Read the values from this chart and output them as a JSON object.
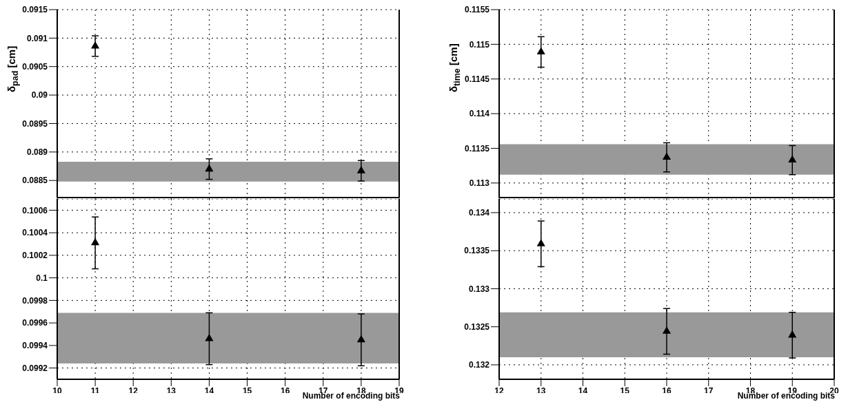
{
  "chart_data": [
    {
      "type": "scatter",
      "ylabel": "δ$_{pad}$ [cm]",
      "x": [
        11,
        14,
        18
      ],
      "values": [
        0.09086,
        0.0887,
        0.08867
      ],
      "errors": [
        0.00018,
        0.00018,
        0.00018
      ],
      "color": "#000000",
      "marker": "triangle",
      "xlim": [
        10,
        19
      ],
      "xticks": [
        10,
        11,
        12,
        13,
        14,
        15,
        16,
        17,
        18,
        19
      ],
      "ylim": [
        0.0882,
        0.0915
      ],
      "yticks": [
        0.0885,
        0.089,
        0.0895,
        0.09,
        0.0905,
        0.091,
        0.0915
      ],
      "grid": true,
      "tick_labels": "y",
      "bands": [
        {
          "axis": "y",
          "from": 0.08848,
          "to": 0.08883,
          "color": "#999999"
        }
      ]
    },
    {
      "type": "scatter",
      "ylabel": "δ$_{time}$ [cm]",
      "x": [
        13,
        16,
        19
      ],
      "values": [
        0.11489,
        0.11337,
        0.11333
      ],
      "errors": [
        0.00022,
        0.00021,
        0.00021
      ],
      "color": "#000000",
      "marker": "triangle",
      "xlim": [
        12,
        20
      ],
      "xticks": [
        12,
        13,
        14,
        15,
        16,
        17,
        18,
        19,
        20
      ],
      "ylim": [
        0.11279,
        0.1155
      ],
      "yticks": [
        0.113,
        0.1135,
        0.114,
        0.1145,
        0.115,
        0.1155
      ],
      "grid": true,
      "tick_labels": "y",
      "bands": [
        {
          "axis": "y",
          "from": 0.11312,
          "to": 0.11356,
          "color": "#999999"
        }
      ]
    },
    {
      "type": "scatter",
      "xlabel": "Number of encoding bits",
      "x": [
        11,
        14,
        18
      ],
      "values": [
        0.10031,
        0.09946,
        0.09945
      ],
      "errors": [
        0.00023,
        0.00023,
        0.00023
      ],
      "color": "#000000",
      "marker": "triangle",
      "xlim": [
        10,
        19
      ],
      "xticks": [
        10,
        11,
        12,
        13,
        14,
        15,
        16,
        17,
        18,
        19
      ],
      "ylim": [
        0.0991,
        0.1007
      ],
      "yticks": [
        0.0992,
        0.0994,
        0.0996,
        0.0998,
        0.1,
        0.1002,
        0.1004,
        0.1006
      ],
      "grid": true,
      "bands": [
        {
          "axis": "y",
          "from": 0.09924,
          "to": 0.09969,
          "color": "#999999"
        }
      ]
    },
    {
      "type": "scatter",
      "xlabel": "Number of encoding bits",
      "x": [
        13,
        16,
        19
      ],
      "values": [
        0.13359,
        0.13244,
        0.13239
      ],
      "errors": [
        0.0003,
        0.0003,
        0.0003
      ],
      "color": "#000000",
      "marker": "triangle",
      "xlim": [
        12,
        20
      ],
      "xticks": [
        12,
        13,
        14,
        15,
        16,
        17,
        18,
        19,
        20
      ],
      "ylim": [
        0.13181,
        0.13418
      ],
      "yticks": [
        0.132,
        0.1325,
        0.133,
        0.1335,
        0.134
      ],
      "grid": true,
      "bands": [
        {
          "axis": "y",
          "from": 0.1321,
          "to": 0.13269,
          "color": "#999999"
        }
      ]
    }
  ]
}
